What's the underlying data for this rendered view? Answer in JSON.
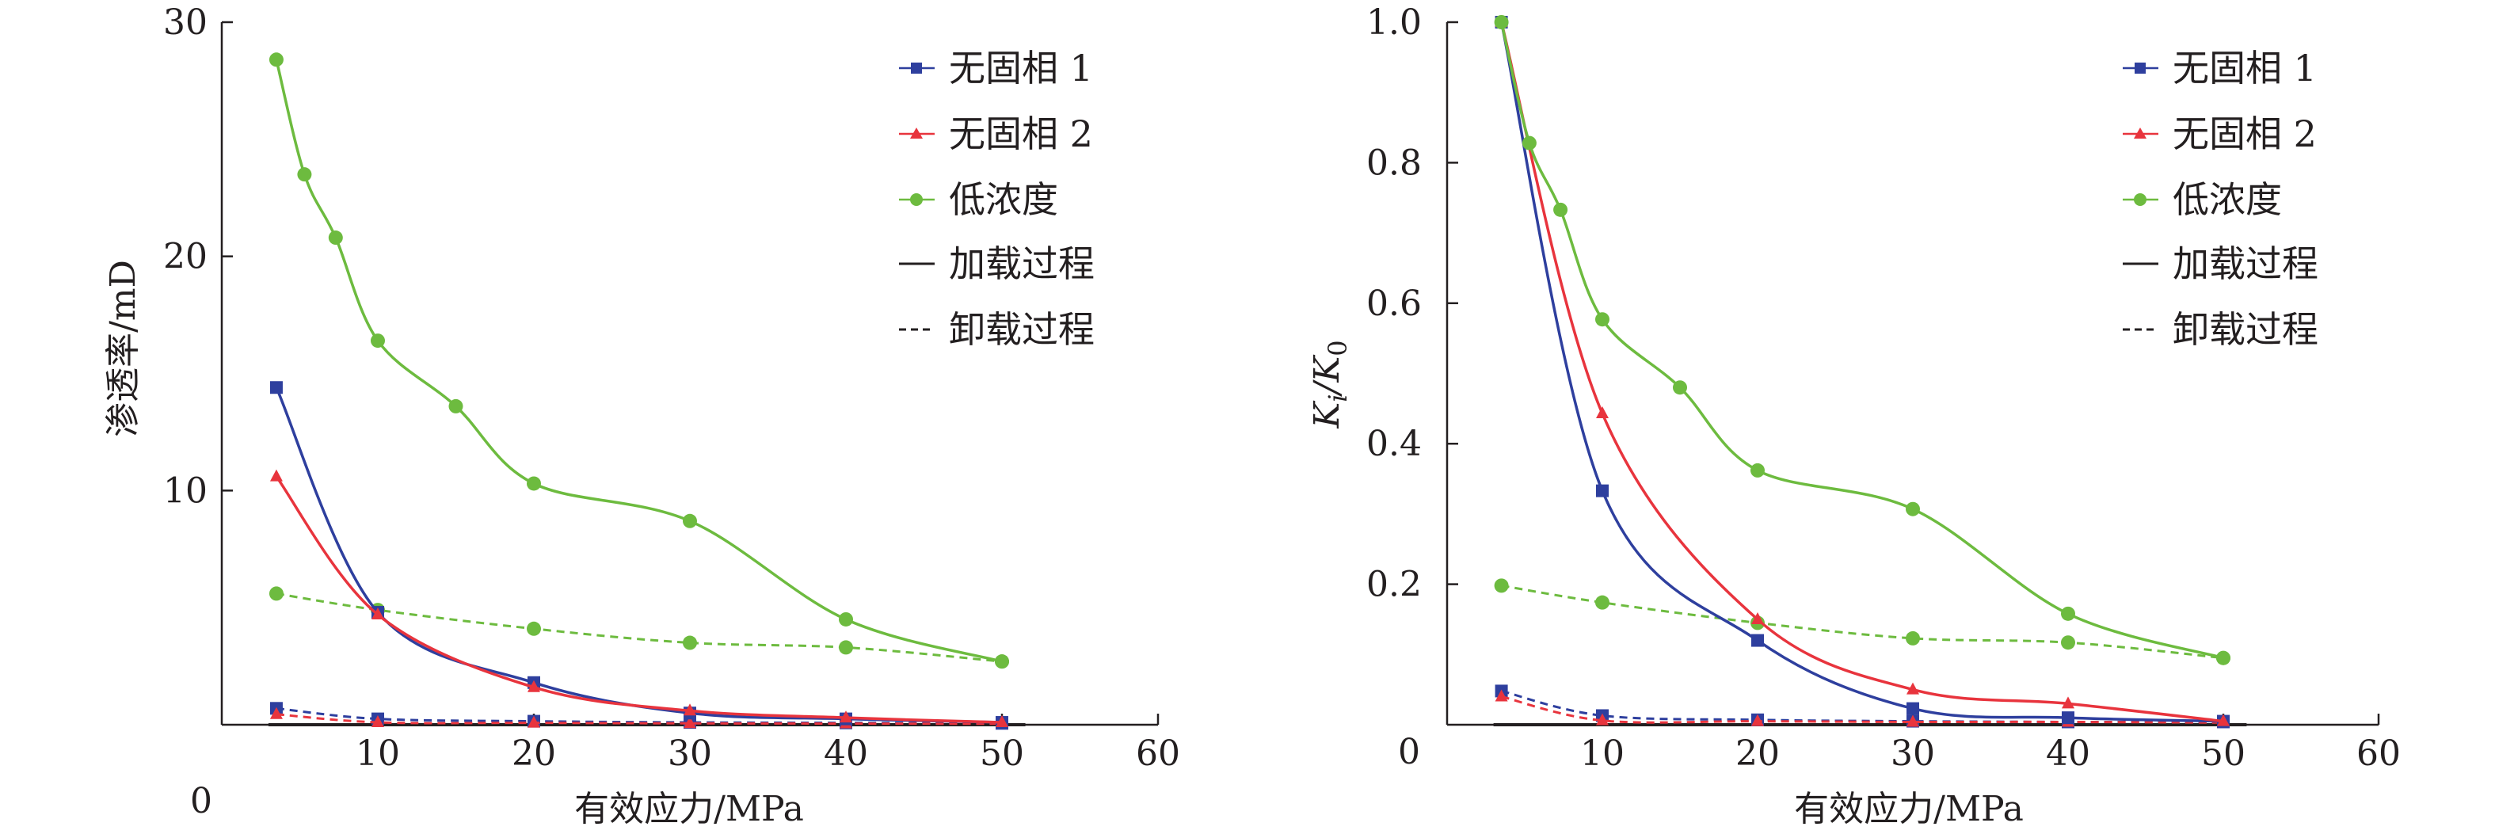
{
  "colors": {
    "series1": "#2e3f9e",
    "series2": "#e8343d",
    "series3": "#6dbb3f",
    "axis": "#231f20"
  },
  "legend": {
    "series1": "无固相 1",
    "series2": "无固相 2",
    "series3": "低浓度",
    "loading": "加载过程",
    "unloading": "卸载过程"
  },
  "chart_data": [
    {
      "type": "line",
      "xlabel": "有效应力/MPa",
      "ylabel": "渗透率/mD",
      "xlim": [
        0,
        60
      ],
      "ylim": [
        0,
        30
      ],
      "xticks": [
        "0",
        "10",
        "20",
        "30",
        "40",
        "50",
        "60"
      ],
      "yticks": [
        "10",
        "20",
        "30"
      ],
      "ytick_values": [
        10,
        20,
        30
      ],
      "xtick_values": [
        0,
        10,
        20,
        30,
        40,
        50,
        60
      ],
      "series": [
        {
          "name": "无固相 1",
          "process": "加载过程",
          "marker": "square",
          "x": [
            3.5,
            10,
            20,
            30,
            40,
            50
          ],
          "y": [
            14.4,
            4.8,
            1.8,
            0.5,
            0.25,
            0.1
          ]
        },
        {
          "name": "无固相 2",
          "process": "加载过程",
          "marker": "triangle",
          "x": [
            3.5,
            10,
            20,
            30,
            40,
            50
          ],
          "y": [
            10.6,
            4.7,
            1.6,
            0.6,
            0.3,
            0.1
          ]
        },
        {
          "name": "低浓度",
          "process": "加载过程",
          "marker": "circle",
          "x": [
            3.5,
            5.3,
            7.3,
            10,
            15,
            20,
            30,
            40,
            50
          ],
          "y": [
            28.4,
            23.5,
            20.8,
            16.4,
            13.6,
            10.3,
            8.7,
            4.5,
            2.7
          ]
        },
        {
          "name": "无固相 1",
          "process": "卸载过程",
          "marker": "square",
          "x": [
            3.5,
            10,
            20,
            30,
            40,
            50
          ],
          "y": [
            0.7,
            0.25,
            0.15,
            0.1,
            0.08,
            0.06
          ]
        },
        {
          "name": "无固相 2",
          "process": "卸载过程",
          "marker": "triangle",
          "x": [
            3.5,
            10,
            20,
            30,
            40,
            50
          ],
          "y": [
            0.45,
            0.1,
            0.08,
            0.06,
            0.05,
            0.04
          ]
        },
        {
          "name": "低浓度",
          "process": "卸载过程",
          "marker": "circle",
          "x": [
            3.5,
            10,
            20,
            30,
            40,
            50
          ],
          "y": [
            5.6,
            4.9,
            4.1,
            3.5,
            3.3,
            2.7
          ]
        }
      ]
    },
    {
      "type": "line",
      "xlabel": "有效应力/MPa",
      "ylabel_main": "K",
      "ylabel_sub1": "i",
      "ylabel_sep": "/K",
      "ylabel_sub2": "0",
      "xlim": [
        0,
        60
      ],
      "ylim": [
        0,
        1.0
      ],
      "xticks": [
        "0",
        "10",
        "20",
        "30",
        "40",
        "50",
        "60"
      ],
      "yticks": [
        "0.2",
        "0.4",
        "0.6",
        "0.8",
        "1.0"
      ],
      "ytick_values": [
        0.2,
        0.4,
        0.6,
        0.8,
        1.0
      ],
      "xtick_values": [
        0,
        10,
        20,
        30,
        40,
        50,
        60
      ],
      "series": [
        {
          "name": "无固相 1",
          "process": "加载过程",
          "marker": "square",
          "x": [
            3.5,
            10,
            20,
            30,
            40,
            50
          ],
          "y": [
            1.0,
            0.333,
            0.12,
            0.023,
            0.01,
            0.005
          ]
        },
        {
          "name": "无固相 2",
          "process": "加载过程",
          "marker": "triangle",
          "x": [
            3.5,
            10,
            20,
            30,
            40,
            50
          ],
          "y": [
            1.0,
            0.443,
            0.15,
            0.05,
            0.03,
            0.005
          ]
        },
        {
          "name": "低浓度",
          "process": "加载过程",
          "marker": "circle",
          "x": [
            3.5,
            5.3,
            7.3,
            10,
            15,
            20,
            30,
            40,
            50
          ],
          "y": [
            1.0,
            0.828,
            0.733,
            0.577,
            0.48,
            0.362,
            0.307,
            0.158,
            0.095
          ]
        },
        {
          "name": "无固相 1",
          "process": "卸载过程",
          "marker": "square",
          "x": [
            3.5,
            10,
            20,
            30,
            40,
            50
          ],
          "y": [
            0.048,
            0.013,
            0.007,
            0.005,
            0.004,
            0.004
          ]
        },
        {
          "name": "无固相 2",
          "process": "卸载过程",
          "marker": "triangle",
          "x": [
            3.5,
            10,
            20,
            30,
            40,
            50
          ],
          "y": [
            0.04,
            0.006,
            0.005,
            0.004,
            0.004,
            0.003
          ]
        },
        {
          "name": "低浓度",
          "process": "卸载过程",
          "marker": "circle",
          "x": [
            3.5,
            10,
            20,
            30,
            40,
            50
          ],
          "y": [
            0.198,
            0.174,
            0.145,
            0.123,
            0.117,
            0.095
          ]
        }
      ]
    }
  ]
}
